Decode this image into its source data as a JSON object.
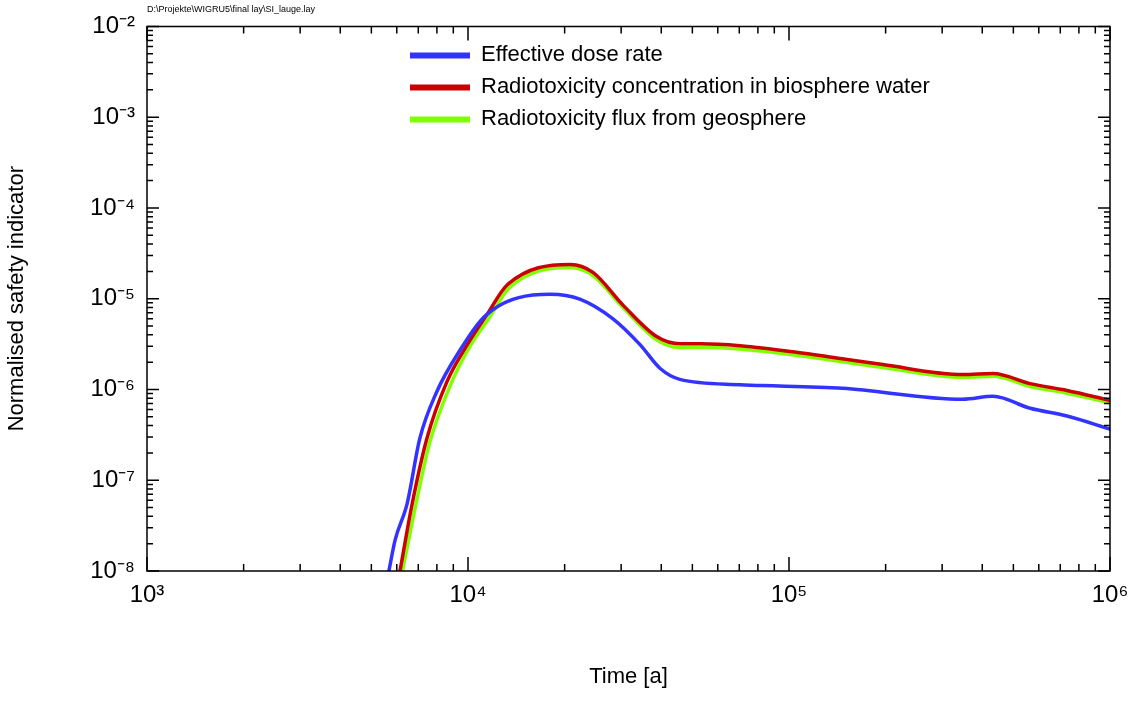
{
  "chart_data": {
    "type": "line",
    "xlabel": "Time [a]",
    "ylabel": "Normalised safety indicator",
    "log": "xy",
    "grid": false,
    "legend": "top",
    "marker": "none",
    "line_style": "solid",
    "xlim": [
      1000,
      1000000
    ],
    "xticks": [
      {
        "value": 1000,
        "label": "10³"
      },
      {
        "value": 10000,
        "label": "10⁴"
      },
      {
        "value": 100000,
        "label": "10⁵"
      },
      {
        "value": 1000000,
        "label": "10⁶"
      }
    ],
    "ylim": [
      1e-08,
      0.01
    ],
    "yticks": [
      {
        "value": 1e-08,
        "label": "10⁻⁸"
      },
      {
        "value": 1e-07,
        "label": "10⁻⁷"
      },
      {
        "value": 1e-06,
        "label": "10⁻⁶"
      },
      {
        "value": 1e-05,
        "label": "10⁻⁵"
      },
      {
        "value": 0.0001,
        "label": "10⁻⁴"
      },
      {
        "value": 0.001,
        "label": "10⁻³"
      },
      {
        "value": 0.01,
        "label": "10⁻²"
      }
    ],
    "annotations": [
      "D:\\Projekte\\WIGRU5\\final lay\\SI_lauge.lay"
    ],
    "series": [
      {
        "name": "Effective dose rate",
        "color": "#3333ff",
        "x": [
          5670,
          5930,
          6460,
          7080,
          8000,
          9240,
          11500,
          18000,
          22300,
          28300,
          34400,
          39700,
          45700,
          70300,
          147000,
          348000,
          432000,
          564000,
          735000,
          1000000
        ],
        "values": [
          1e-08,
          2.2e-08,
          5.5e-08,
          2.9e-07,
          9.5e-07,
          2.4e-06,
          6.8e-06,
          1.12e-05,
          9.9e-06,
          6e-06,
          3.1e-06,
          1.7e-06,
          1.29e-06,
          1.13e-06,
          1.03e-06,
          7.8e-07,
          8.4e-07,
          6.2e-07,
          5.1e-07,
          3.66e-07
        ]
      },
      {
        "name": "Radiotoxicity concentration in biosphere water",
        "color": "#cc0000",
        "x": [
          6140,
          6700,
          7450,
          8600,
          9940,
          11500,
          13200,
          20800,
          24500,
          30400,
          38800,
          45700,
          52900,
          70300,
          108000,
          196000,
          348000,
          432000,
          564000,
          735000,
          1000000
        ],
        "values": [
          1e-08,
          5.5e-08,
          2.9e-07,
          1.22e-06,
          3.1e-06,
          6.8e-06,
          1.4e-05,
          2.38e-05,
          1.95e-05,
          8.5e-06,
          3.8e-06,
          3.18e-06,
          3.18e-06,
          3.03e-06,
          2.54e-06,
          1.88e-06,
          1.46e-06,
          1.5e-06,
          1.16e-06,
          9.75e-07,
          7.6e-07
        ]
      },
      {
        "name": "Radiotoxicity flux from geosphere",
        "color": "#80ff00",
        "x": [
          6250,
          6850,
          7600,
          8800,
          10100,
          11700,
          13400,
          20800,
          24500,
          30400,
          38800,
          45700,
          52900,
          70300,
          108000,
          196000,
          348000,
          432000,
          564000,
          735000,
          1000000
        ],
        "values": [
          1e-08,
          5e-08,
          2.6e-07,
          1.1e-06,
          2.9e-06,
          6.3e-06,
          1.3e-05,
          2.2e-05,
          1.8e-05,
          8e-06,
          3.5e-06,
          2.9e-06,
          2.9e-06,
          2.8e-06,
          2.35e-06,
          1.75e-06,
          1.36e-06,
          1.4e-06,
          1.08e-06,
          9.1e-07,
          7.1e-07
        ]
      }
    ]
  }
}
